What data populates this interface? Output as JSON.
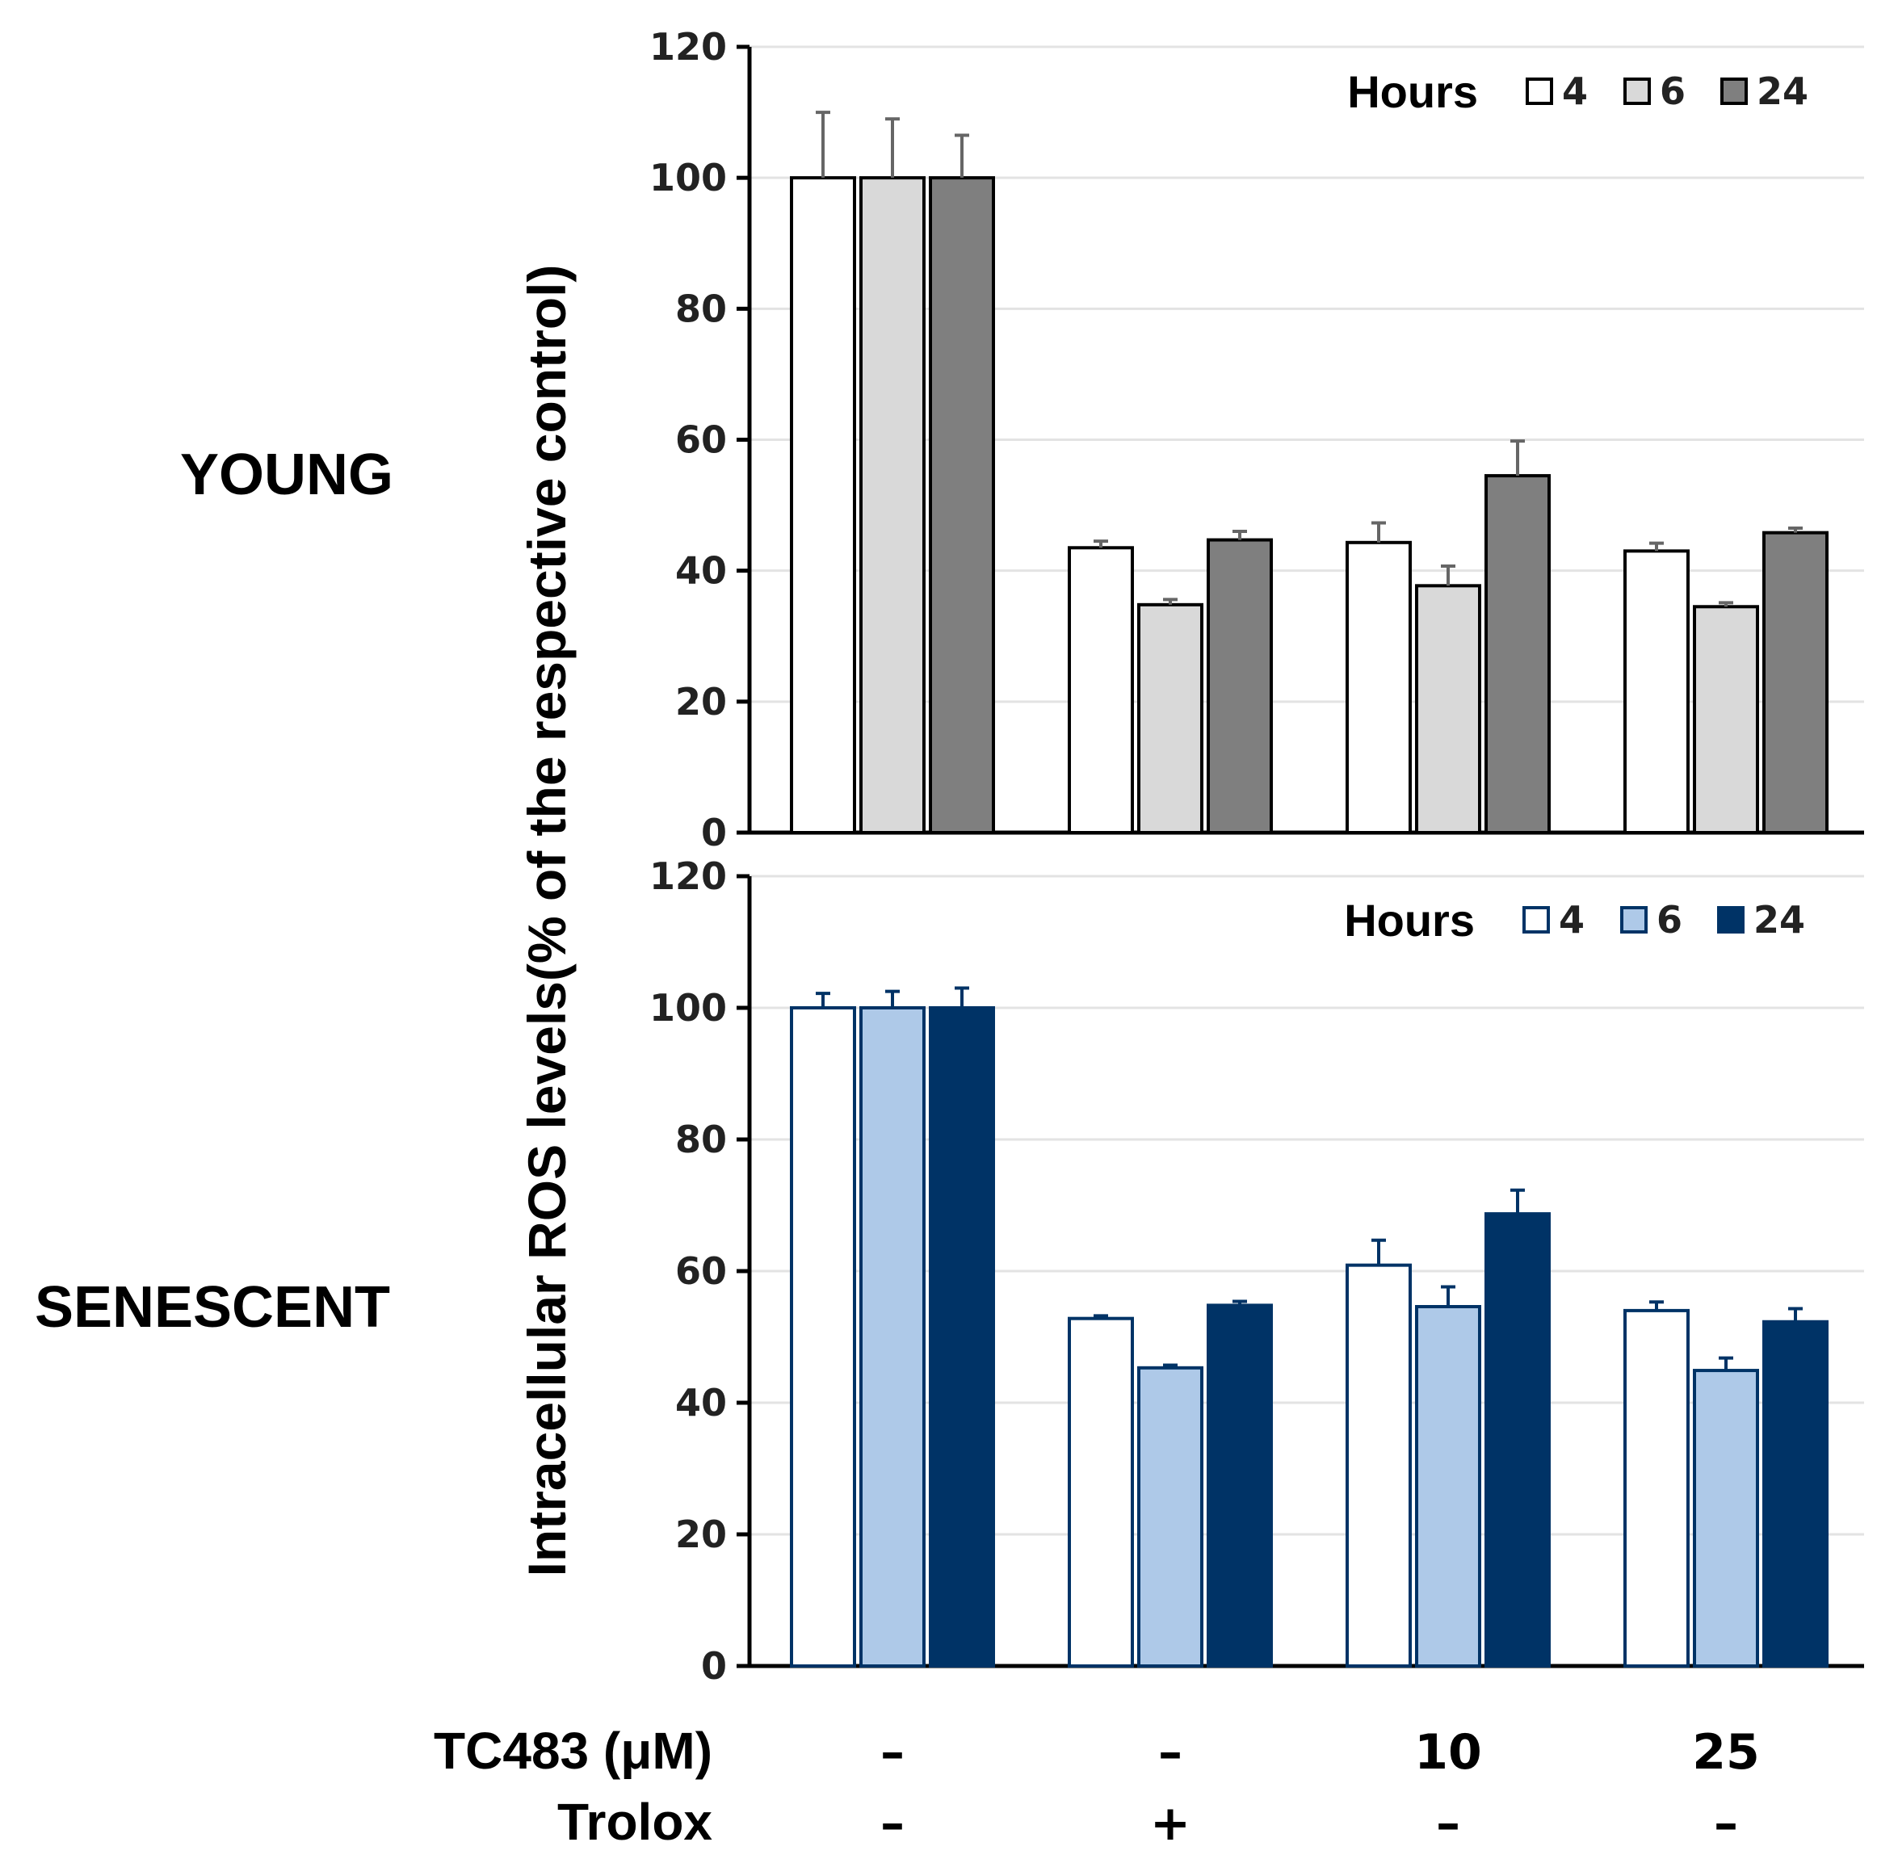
{
  "chart_data": [
    {
      "type": "bar",
      "panel_label": "YOUNG",
      "ylabel": "Intracellular ROS levels(% of the respective control)",
      "ylim": [
        0,
        120
      ],
      "yticks": [
        "0",
        "20",
        "40",
        "60",
        "80",
        "100",
        "120"
      ],
      "grid": true,
      "legend": {
        "title": "Hours",
        "placement": "top-right",
        "labels": [
          "4",
          "6",
          "24"
        ]
      },
      "categories": [
        "control",
        "trolox",
        "tc483_10",
        "tc483_25"
      ],
      "series": [
        {
          "name": "4",
          "color": "#ffffff",
          "edge": "#000000",
          "err_color": "#666666",
          "values": [
            100,
            43.5,
            44.3,
            43
          ],
          "errors": [
            10,
            1,
            3,
            1.2
          ]
        },
        {
          "name": "6",
          "color": "#d9d9d9",
          "edge": "#000000",
          "err_color": "#666666",
          "values": [
            100,
            34.8,
            37.7,
            34.5
          ],
          "errors": [
            9,
            0.8,
            3,
            0.6
          ]
        },
        {
          "name": "24",
          "color": "#7f7f7f",
          "edge": "#000000",
          "err_color": "#666666",
          "values": [
            100,
            44.7,
            54.5,
            45.8
          ],
          "errors": [
            6.5,
            1.3,
            5.3,
            0.7
          ]
        }
      ]
    },
    {
      "type": "bar",
      "panel_label": "SENESCENT",
      "ylim": [
        0,
        120
      ],
      "yticks": [
        "0",
        "20",
        "40",
        "60",
        "80",
        "100",
        "120"
      ],
      "grid": true,
      "legend": {
        "title": "Hours",
        "placement": "top-right",
        "labels": [
          "4",
          "6",
          "24"
        ]
      },
      "categories": [
        "control",
        "trolox",
        "tc483_10",
        "tc483_25"
      ],
      "series": [
        {
          "name": "4",
          "color": "#ffffff",
          "edge": "#003366",
          "err_color": "#003366",
          "values": [
            100,
            52.8,
            60.9,
            54
          ],
          "errors": [
            2.2,
            0.4,
            3.8,
            1.3
          ]
        },
        {
          "name": "6",
          "color": "#aec9e8",
          "edge": "#003366",
          "err_color": "#003366",
          "values": [
            100,
            45.3,
            54.6,
            44.9
          ],
          "errors": [
            2.5,
            0.4,
            3,
            1.9
          ]
        },
        {
          "name": "24",
          "color": "#003366",
          "edge": "#003366",
          "err_color": "#003366",
          "values": [
            100,
            54.8,
            68.7,
            52.3
          ],
          "errors": [
            3,
            0.6,
            3.6,
            2
          ]
        }
      ]
    }
  ],
  "x_table": {
    "rows": [
      {
        "label": "TC483 (μM)",
        "values": [
          "–",
          "–",
          "10",
          "25"
        ]
      },
      {
        "label": "Trolox",
        "values": [
          "–",
          "+",
          "–",
          "–"
        ]
      }
    ]
  }
}
